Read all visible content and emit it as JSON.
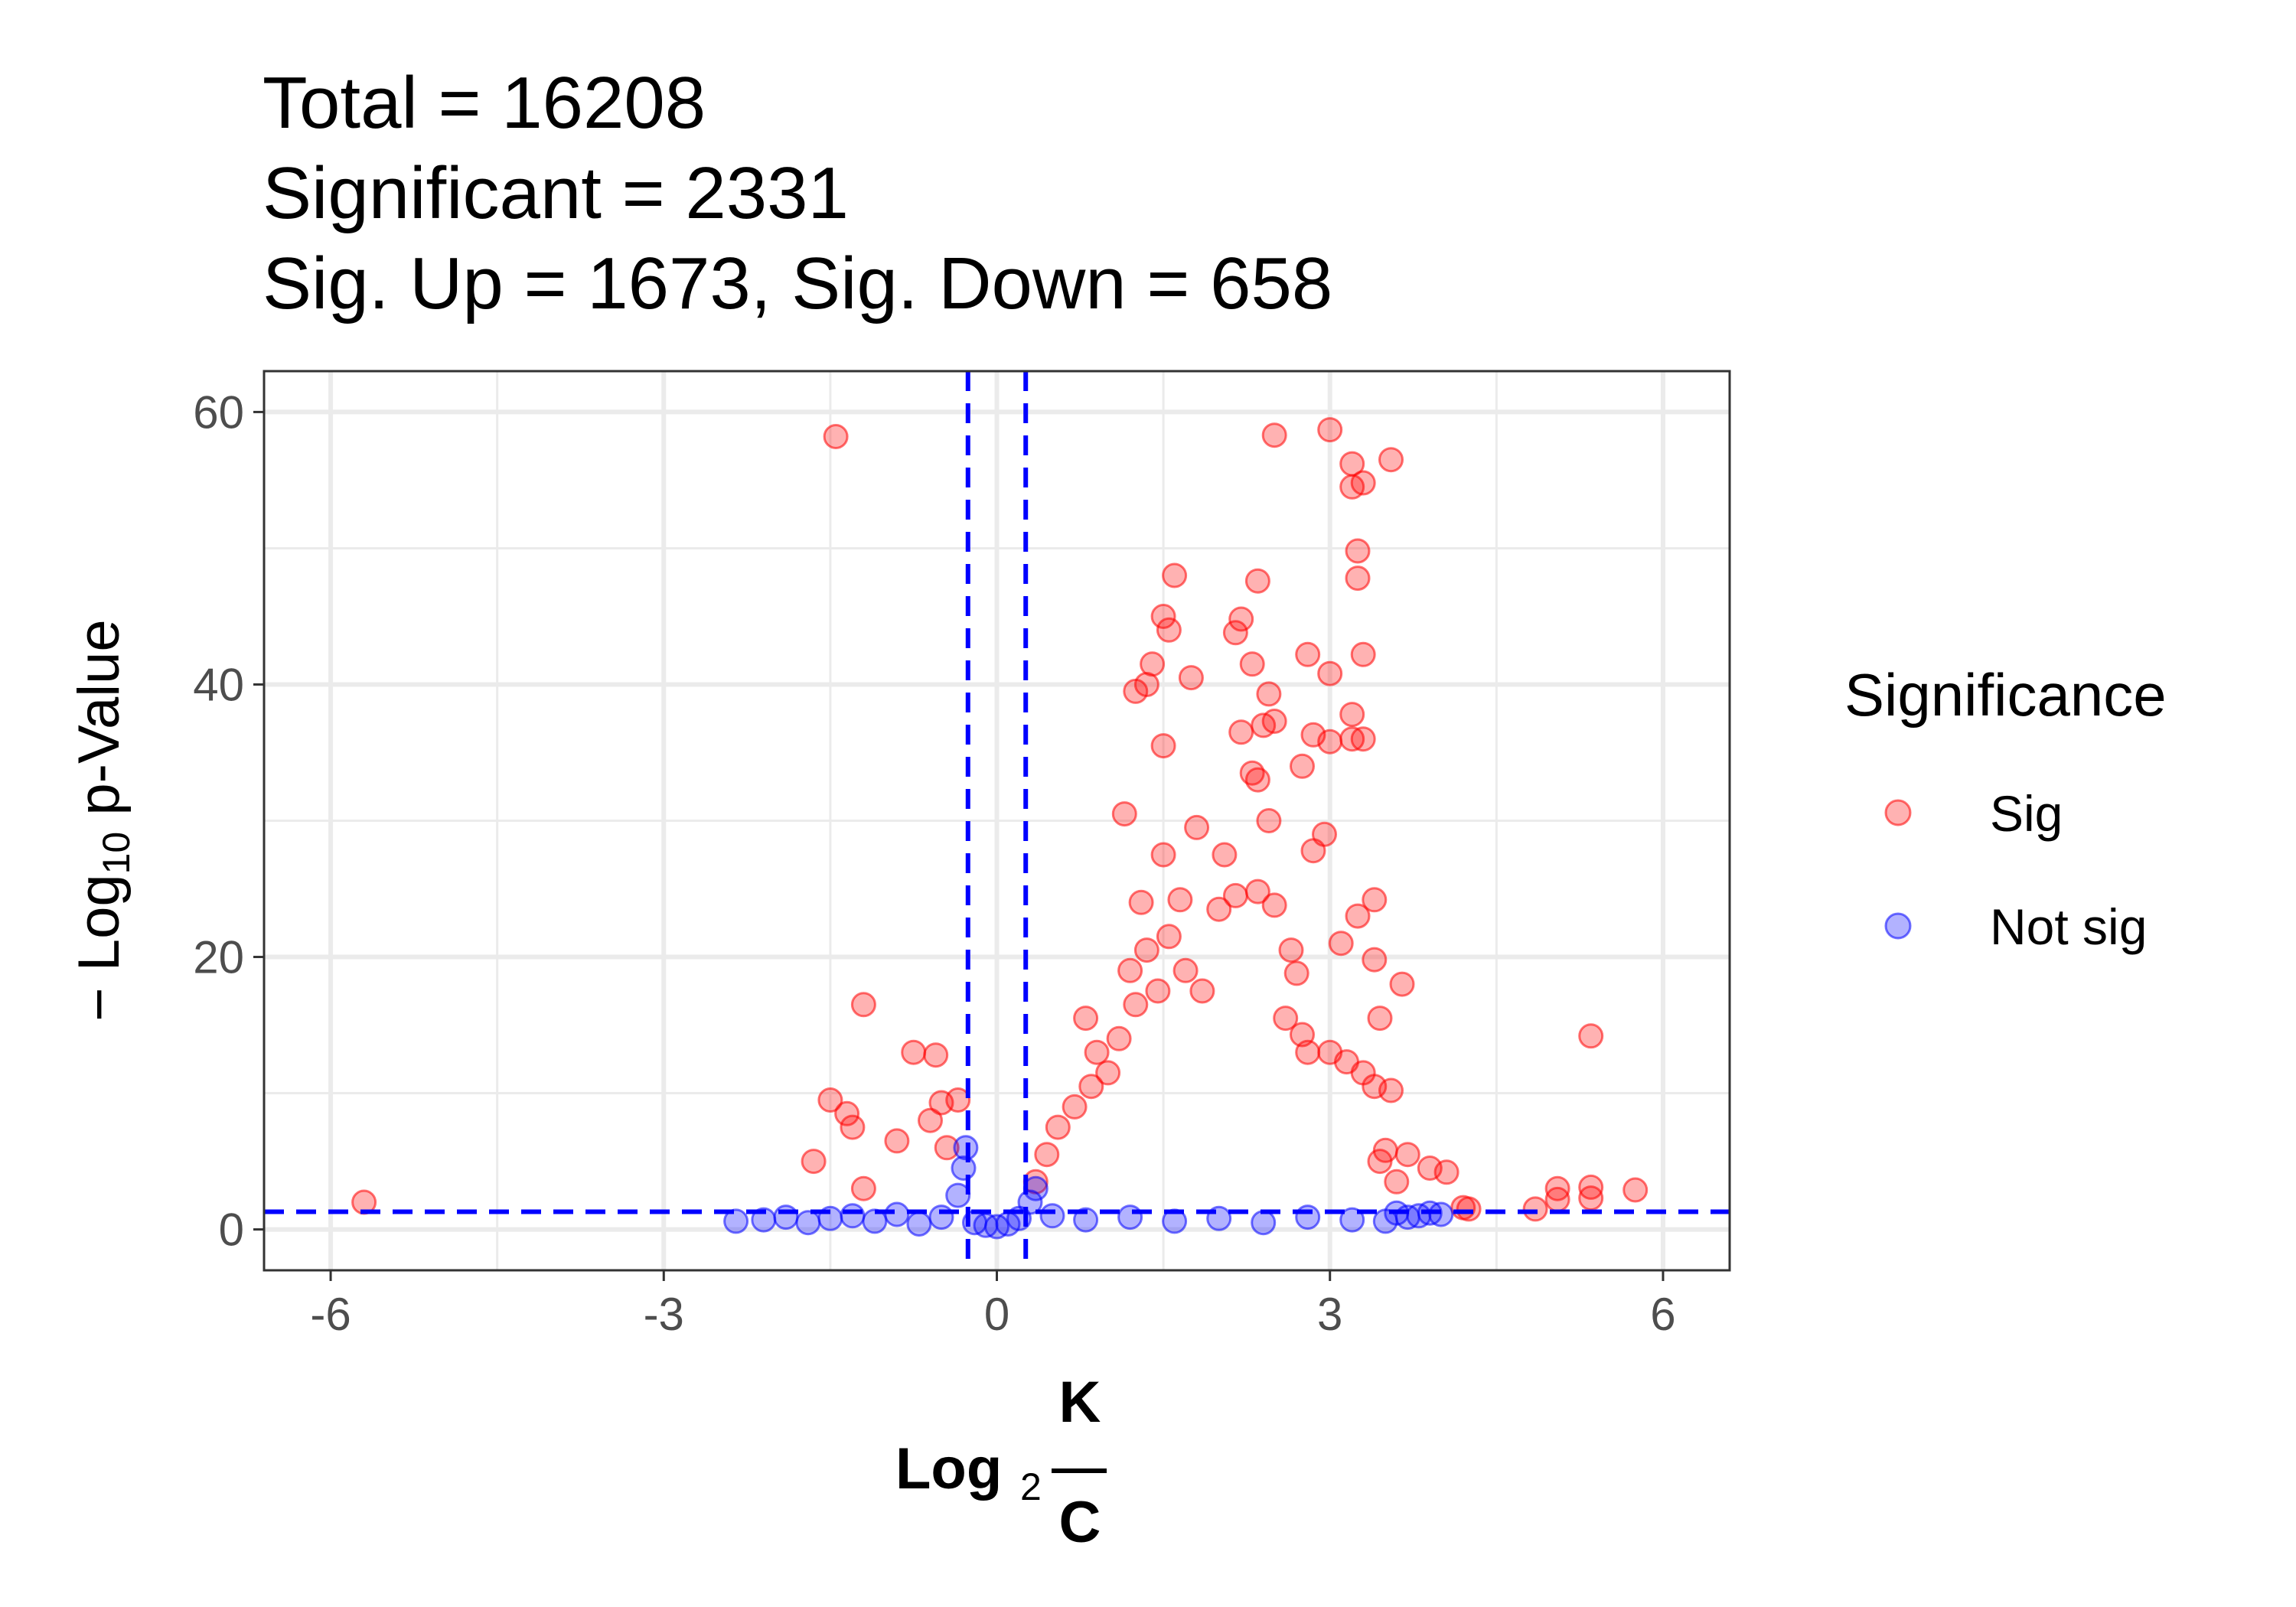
{
  "chart_data": {
    "type": "scatter",
    "title_lines": [
      "Total = 16208",
      "Significant = 2331",
      "Sig. Up = 1673, Sig. Down = 658"
    ],
    "xlabel": {
      "prefix": "Log",
      "subscript": "2",
      "numerator": "K",
      "denominator": "C"
    },
    "ylabel": {
      "prefix": "− Log",
      "subscript": "10",
      "suffix": " p-Value"
    },
    "xlim": [
      -6.6,
      6.6
    ],
    "ylim": [
      -3,
      63
    ],
    "x_ticks": [
      -6,
      -3,
      0,
      3,
      6
    ],
    "x_tick_labels": [
      "-6",
      "-3",
      "0",
      "3",
      "6"
    ],
    "y_ticks": [
      0,
      20,
      40,
      60
    ],
    "y_tick_labels": [
      "0",
      "20",
      "40",
      "60"
    ],
    "grid": true,
    "thresholds": {
      "x": [
        -0.26,
        0.26
      ],
      "y": 1.3,
      "color": "#0000ff"
    },
    "legend": {
      "title": "Significance",
      "position": "right",
      "entries": [
        {
          "label": "Sig",
          "color": "#ff0000"
        },
        {
          "label": "Not sig",
          "color": "#0000ff"
        }
      ]
    },
    "series": [
      {
        "name": "Sig",
        "color": "#ff0000",
        "points": [
          [
            -1.45,
            58.2
          ],
          [
            -5.7,
            2.0
          ],
          [
            -1.2,
            16.5
          ],
          [
            -0.75,
            13.0
          ],
          [
            -0.55,
            12.8
          ],
          [
            -1.5,
            9.5
          ],
          [
            -1.35,
            8.5
          ],
          [
            -1.3,
            7.5
          ],
          [
            -1.65,
            5.0
          ],
          [
            -1.2,
            3.0
          ],
          [
            -0.9,
            6.5
          ],
          [
            -0.5,
            9.3
          ],
          [
            -0.35,
            9.5
          ],
          [
            -0.6,
            8.0
          ],
          [
            -0.45,
            6.0
          ],
          [
            1.6,
            48.0
          ],
          [
            1.5,
            45.0
          ],
          [
            1.55,
            44.0
          ],
          [
            1.4,
            41.5
          ],
          [
            1.35,
            40.0
          ],
          [
            1.75,
            40.5
          ],
          [
            1.25,
            39.5
          ],
          [
            1.5,
            35.5
          ],
          [
            1.15,
            30.5
          ],
          [
            1.8,
            29.5
          ],
          [
            1.5,
            27.5
          ],
          [
            1.65,
            24.2
          ],
          [
            1.3,
            24.0
          ],
          [
            2.05,
            27.5
          ],
          [
            2.5,
            58.3
          ],
          [
            3.0,
            58.7
          ],
          [
            3.2,
            56.2
          ],
          [
            3.55,
            56.5
          ],
          [
            3.2,
            54.5
          ],
          [
            3.3,
            54.8
          ],
          [
            3.25,
            49.8
          ],
          [
            3.25,
            47.8
          ],
          [
            2.35,
            47.6
          ],
          [
            2.2,
            44.8
          ],
          [
            2.15,
            43.8
          ],
          [
            2.3,
            41.5
          ],
          [
            2.8,
            42.2
          ],
          [
            3.0,
            40.8
          ],
          [
            3.3,
            42.2
          ],
          [
            2.45,
            39.3
          ],
          [
            2.2,
            36.5
          ],
          [
            2.4,
            37.0
          ],
          [
            2.5,
            37.3
          ],
          [
            2.85,
            36.3
          ],
          [
            3.0,
            35.8
          ],
          [
            3.2,
            36.0
          ],
          [
            3.3,
            36.0
          ],
          [
            3.2,
            37.8
          ],
          [
            2.3,
            33.5
          ],
          [
            2.35,
            33.0
          ],
          [
            2.75,
            34.0
          ],
          [
            2.45,
            30.0
          ],
          [
            2.95,
            29.0
          ],
          [
            2.85,
            27.8
          ],
          [
            3.25,
            23.0
          ],
          [
            3.4,
            24.2
          ],
          [
            3.1,
            21.0
          ],
          [
            3.4,
            19.8
          ],
          [
            3.65,
            18.0
          ],
          [
            3.45,
            15.5
          ],
          [
            5.35,
            14.2
          ],
          [
            5.05,
            3.0
          ],
          [
            5.05,
            2.2
          ],
          [
            5.35,
            3.1
          ],
          [
            5.35,
            2.3
          ],
          [
            5.75,
            2.9
          ],
          [
            4.85,
            1.5
          ],
          [
            4.2,
            1.6
          ],
          [
            4.25,
            1.5
          ],
          [
            4.05,
            4.2
          ],
          [
            3.9,
            4.5
          ],
          [
            3.7,
            5.5
          ],
          [
            3.5,
            5.8
          ],
          [
            3.45,
            5.0
          ],
          [
            3.6,
            3.5
          ],
          [
            3.4,
            10.5
          ],
          [
            3.55,
            10.2
          ],
          [
            3.3,
            11.5
          ],
          [
            3.15,
            12.3
          ],
          [
            3.0,
            13.0
          ],
          [
            2.75,
            14.3
          ],
          [
            2.8,
            13.0
          ],
          [
            2.6,
            15.5
          ],
          [
            0.35,
            3.5
          ],
          [
            0.45,
            5.5
          ],
          [
            0.55,
            7.5
          ],
          [
            0.7,
            9.0
          ],
          [
            0.85,
            10.5
          ],
          [
            1.0,
            11.5
          ],
          [
            0.8,
            15.5
          ],
          [
            0.9,
            13.0
          ],
          [
            1.1,
            14.0
          ],
          [
            1.25,
            16.5
          ],
          [
            1.45,
            17.5
          ],
          [
            1.2,
            19.0
          ],
          [
            1.35,
            20.5
          ],
          [
            1.55,
            21.5
          ],
          [
            1.7,
            19.0
          ],
          [
            1.85,
            17.5
          ],
          [
            2.0,
            23.5
          ],
          [
            2.15,
            24.5
          ],
          [
            2.35,
            24.8
          ],
          [
            2.5,
            23.8
          ],
          [
            2.65,
            20.5
          ],
          [
            2.7,
            18.8
          ]
        ]
      },
      {
        "name": "Not sig",
        "color": "#0000ff",
        "points": [
          [
            -2.35,
            0.6
          ],
          [
            -2.1,
            0.7
          ],
          [
            -1.9,
            0.9
          ],
          [
            -1.7,
            0.5
          ],
          [
            -1.5,
            0.8
          ],
          [
            -1.3,
            1.0
          ],
          [
            -1.1,
            0.6
          ],
          [
            -0.9,
            1.1
          ],
          [
            -0.7,
            0.4
          ],
          [
            -0.5,
            0.9
          ],
          [
            -0.35,
            2.5
          ],
          [
            -0.3,
            4.5
          ],
          [
            -0.28,
            6.0
          ],
          [
            -0.2,
            0.5
          ],
          [
            -0.1,
            0.3
          ],
          [
            0.0,
            0.2
          ],
          [
            0.1,
            0.4
          ],
          [
            0.2,
            0.8
          ],
          [
            0.3,
            2.0
          ],
          [
            0.35,
            3.0
          ],
          [
            0.5,
            1.0
          ],
          [
            0.8,
            0.7
          ],
          [
            1.2,
            0.9
          ],
          [
            1.6,
            0.6
          ],
          [
            2.0,
            0.8
          ],
          [
            2.4,
            0.5
          ],
          [
            2.8,
            0.9
          ],
          [
            3.2,
            0.7
          ],
          [
            3.5,
            0.6
          ],
          [
            3.7,
            0.9
          ],
          [
            3.9,
            1.2
          ],
          [
            3.8,
            1.0
          ],
          [
            4.0,
            1.1
          ],
          [
            3.6,
            1.2
          ]
        ]
      }
    ]
  }
}
